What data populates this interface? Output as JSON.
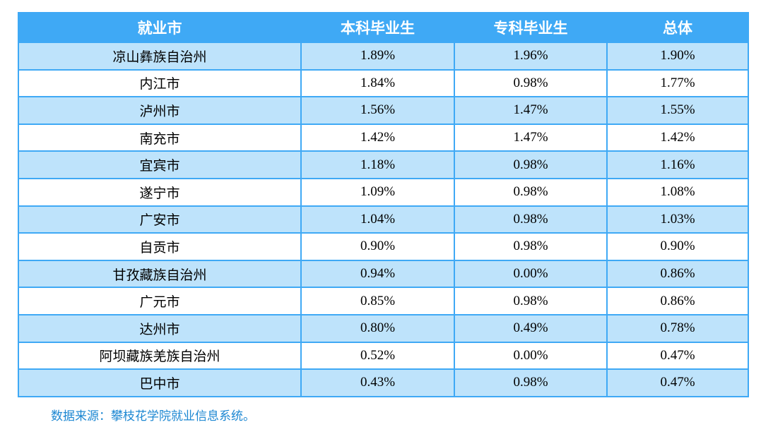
{
  "table": {
    "columns": [
      "就业市",
      "本科毕业生",
      "专科毕业生",
      "总体"
    ],
    "rows": [
      [
        "凉山彝族自治州",
        "1.89%",
        "1.96%",
        "1.90%"
      ],
      [
        "内江市",
        "1.84%",
        "0.98%",
        "1.77%"
      ],
      [
        "泸州市",
        "1.56%",
        "1.47%",
        "1.55%"
      ],
      [
        "南充市",
        "1.42%",
        "1.47%",
        "1.42%"
      ],
      [
        "宜宾市",
        "1.18%",
        "0.98%",
        "1.16%"
      ],
      [
        "遂宁市",
        "1.09%",
        "0.98%",
        "1.08%"
      ],
      [
        "广安市",
        "1.04%",
        "0.98%",
        "1.03%"
      ],
      [
        "自贡市",
        "0.90%",
        "0.98%",
        "0.90%"
      ],
      [
        "甘孜藏族自治州",
        "0.94%",
        "0.00%",
        "0.86%"
      ],
      [
        "广元市",
        "0.85%",
        "0.98%",
        "0.86%"
      ],
      [
        "达州市",
        "0.80%",
        "0.49%",
        "0.78%"
      ],
      [
        "阿坝藏族羌族自治州",
        "0.52%",
        "0.00%",
        "0.47%"
      ],
      [
        "巴中市",
        "0.43%",
        "0.98%",
        "0.47%"
      ]
    ]
  },
  "footer": {
    "source_note": "数据来源：攀枝花学院就业信息系统。"
  },
  "colors": {
    "header_background": "#3FA9F5",
    "row_alternate_background": "#BEE3FB",
    "row_background": "#FFFFFF",
    "table_border": "#3FA9F5",
    "header_text": "#FFFFFF",
    "body_text": "#000000",
    "source_note_text": "#1C87D2"
  }
}
